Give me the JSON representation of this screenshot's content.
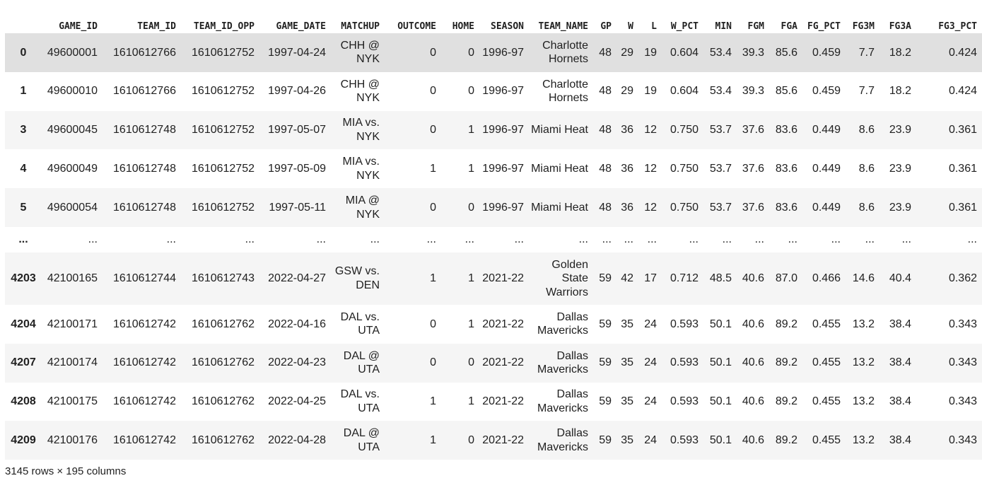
{
  "table": {
    "columns": [
      "",
      "GAME_ID",
      "TEAM_ID",
      "TEAM_ID_OPP",
      "GAME_DATE",
      "MATCHUP",
      "OUTCOME",
      "HOME",
      "SEASON",
      "TEAM_NAME",
      "GP",
      "W",
      "L",
      "W_PCT",
      "MIN",
      "FGM",
      "FGA",
      "FG_PCT",
      "FG3M",
      "FG3A",
      "FG3_PCT"
    ],
    "rows": [
      [
        "0",
        "49600001",
        "1610612766",
        "1610612752",
        "1997-04-24",
        "CHH @ NYK",
        "0",
        "0",
        "1996-97",
        "Charlotte Hornets",
        "48",
        "29",
        "19",
        "0.604",
        "53.4",
        "39.3",
        "85.6",
        "0.459",
        "7.7",
        "18.2",
        "0.424"
      ],
      [
        "1",
        "49600010",
        "1610612766",
        "1610612752",
        "1997-04-26",
        "CHH @ NYK",
        "0",
        "0",
        "1996-97",
        "Charlotte Hornets",
        "48",
        "29",
        "19",
        "0.604",
        "53.4",
        "39.3",
        "85.6",
        "0.459",
        "7.7",
        "18.2",
        "0.424"
      ],
      [
        "3",
        "49600045",
        "1610612748",
        "1610612752",
        "1997-05-07",
        "MIA vs. NYK",
        "0",
        "1",
        "1996-97",
        "Miami Heat",
        "48",
        "36",
        "12",
        "0.750",
        "53.7",
        "37.6",
        "83.6",
        "0.449",
        "8.6",
        "23.9",
        "0.361"
      ],
      [
        "4",
        "49600049",
        "1610612748",
        "1610612752",
        "1997-05-09",
        "MIA vs. NYK",
        "1",
        "1",
        "1996-97",
        "Miami Heat",
        "48",
        "36",
        "12",
        "0.750",
        "53.7",
        "37.6",
        "83.6",
        "0.449",
        "8.6",
        "23.9",
        "0.361"
      ],
      [
        "5",
        "49600054",
        "1610612748",
        "1610612752",
        "1997-05-11",
        "MIA @ NYK",
        "0",
        "0",
        "1996-97",
        "Miami Heat",
        "48",
        "36",
        "12",
        "0.750",
        "53.7",
        "37.6",
        "83.6",
        "0.449",
        "8.6",
        "23.9",
        "0.361"
      ],
      [
        "...",
        "...",
        "...",
        "...",
        "...",
        "...",
        "...",
        "...",
        "...",
        "...",
        "...",
        "...",
        "...",
        "...",
        "...",
        "...",
        "...",
        "...",
        "...",
        "...",
        "..."
      ],
      [
        "4203",
        "42100165",
        "1610612744",
        "1610612743",
        "2022-04-27",
        "GSW vs. DEN",
        "1",
        "1",
        "2021-22",
        "Golden State Warriors",
        "59",
        "42",
        "17",
        "0.712",
        "48.5",
        "40.6",
        "87.0",
        "0.466",
        "14.6",
        "40.4",
        "0.362"
      ],
      [
        "4204",
        "42100171",
        "1610612742",
        "1610612762",
        "2022-04-16",
        "DAL vs. UTA",
        "0",
        "1",
        "2021-22",
        "Dallas Mavericks",
        "59",
        "35",
        "24",
        "0.593",
        "50.1",
        "40.6",
        "89.2",
        "0.455",
        "13.2",
        "38.4",
        "0.343"
      ],
      [
        "4207",
        "42100174",
        "1610612742",
        "1610612762",
        "2022-04-23",
        "DAL @ UTA",
        "0",
        "0",
        "2021-22",
        "Dallas Mavericks",
        "59",
        "35",
        "24",
        "0.593",
        "50.1",
        "40.6",
        "89.2",
        "0.455",
        "13.2",
        "38.4",
        "0.343"
      ],
      [
        "4208",
        "42100175",
        "1610612742",
        "1610612762",
        "2022-04-25",
        "DAL vs. UTA",
        "1",
        "1",
        "2021-22",
        "Dallas Mavericks",
        "59",
        "35",
        "24",
        "0.593",
        "50.1",
        "40.6",
        "89.2",
        "0.455",
        "13.2",
        "38.4",
        "0.343"
      ],
      [
        "4209",
        "42100176",
        "1610612742",
        "1610612762",
        "2022-04-28",
        "DAL @ UTA",
        "1",
        "0",
        "2021-22",
        "Dallas Mavericks",
        "59",
        "35",
        "24",
        "0.593",
        "50.1",
        "40.6",
        "89.2",
        "0.455",
        "13.2",
        "38.4",
        "0.343"
      ]
    ],
    "caption": "3145 rows × 195 columns"
  },
  "colors": {
    "stripe": "#f5f5f5",
    "hover_row": "#e0e0e0",
    "text": "#212121"
  }
}
